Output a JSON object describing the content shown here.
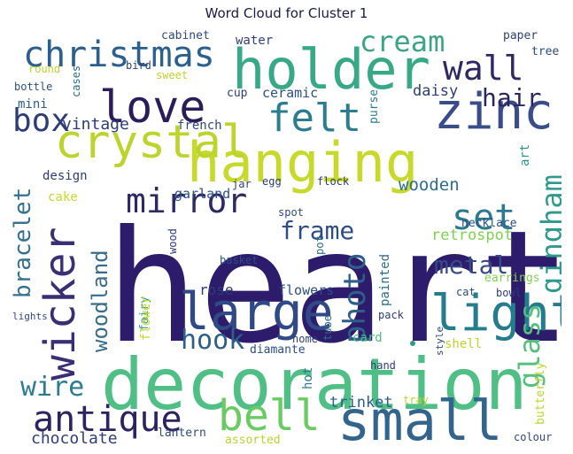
{
  "title": "Word Cloud for Cluster 1",
  "colors": {
    "background": "#ffffff",
    "title": "#1a1a4a"
  },
  "words": [
    {
      "text": "heart",
      "color": "#2d1b6b"
    },
    {
      "text": "decoration",
      "color": "#4fbf85"
    },
    {
      "text": "hanging",
      "color": "#c7d92a"
    },
    {
      "text": "crystal",
      "color": "#bcd42c"
    },
    {
      "text": "holder",
      "color": "#37a987"
    },
    {
      "text": "christmas",
      "color": "#2b5f8e"
    },
    {
      "text": "love",
      "color": "#2a1d59"
    },
    {
      "text": "zinc",
      "color": "#3a4c8a"
    },
    {
      "text": "felt",
      "color": "#2b7c8e"
    },
    {
      "text": "large",
      "color": "#2f4a86"
    },
    {
      "text": "light",
      "color": "#257c8c"
    },
    {
      "text": "small",
      "color": "#33648d"
    },
    {
      "text": "wicker",
      "color": "#3a2f74"
    },
    {
      "text": "mirror",
      "color": "#2d2a63"
    },
    {
      "text": "antique",
      "color": "#2d2362"
    },
    {
      "text": "bell",
      "color": "#6acb63"
    },
    {
      "text": "cream",
      "color": "#3ca587"
    },
    {
      "text": "wall",
      "color": "#2d2a63"
    },
    {
      "text": "box",
      "color": "#2c3d77"
    },
    {
      "text": "photo",
      "color": "#2c5f89"
    },
    {
      "text": "frame",
      "color": "#2e4c86"
    },
    {
      "text": "set",
      "color": "#2b7a8e"
    },
    {
      "text": "gingham",
      "color": "#2f9a8c"
    },
    {
      "text": "glass",
      "color": "#53c07e"
    },
    {
      "text": "metal",
      "color": "#354a86"
    },
    {
      "text": "bracelet",
      "color": "#35718f"
    },
    {
      "text": "woodland",
      "color": "#3a6c8b"
    },
    {
      "text": "hook",
      "color": "#2c5f89"
    },
    {
      "text": "hair",
      "color": "#2a2560"
    },
    {
      "text": "wire",
      "color": "#2b7c8e"
    },
    {
      "text": "chocolate",
      "color": "#2f3f7a"
    },
    {
      "text": "vintage",
      "color": "#2c3d77"
    },
    {
      "text": "french",
      "color": "#2f4a7e"
    },
    {
      "text": "wooden",
      "color": "#2b6d8e"
    },
    {
      "text": "daisy",
      "color": "#2c3d77"
    },
    {
      "text": "ceramic",
      "color": "#2b4f86"
    },
    {
      "text": "trinket",
      "color": "#2b5f8e"
    },
    {
      "text": "retrospot",
      "color": "#7ed34f"
    },
    {
      "text": "design",
      "color": "#2c3d77"
    },
    {
      "text": "garland",
      "color": "#2b4f86"
    },
    {
      "text": "rose",
      "color": "#2c3d77"
    },
    {
      "text": "flowers",
      "color": "#2b4f86"
    },
    {
      "text": "painted",
      "color": "#2b6d8e"
    },
    {
      "text": "water",
      "color": "#2f3f7a"
    },
    {
      "text": "cup",
      "color": "#2c3d77"
    },
    {
      "text": "mini",
      "color": "#2c5f89"
    },
    {
      "text": "bottle",
      "color": "#2b4f86"
    },
    {
      "text": "cases",
      "color": "#2b6d8e"
    },
    {
      "text": "round",
      "color": "#bcd42c"
    },
    {
      "text": "bird",
      "color": "#2f3f7a"
    },
    {
      "text": "sweet",
      "color": "#bcd42c"
    },
    {
      "text": "cabinet",
      "color": "#2f4a7e"
    },
    {
      "text": "paper",
      "color": "#2f3f7a"
    },
    {
      "text": "tree",
      "color": "#2f4a7e"
    },
    {
      "text": "purse",
      "color": "#2b7c8e"
    },
    {
      "text": "art",
      "color": "#2f9a8c"
    },
    {
      "text": "egg",
      "color": "#2c3d77"
    },
    {
      "text": "jar",
      "color": "#2f3f7a"
    },
    {
      "text": "flock",
      "color": "#2c3d77"
    },
    {
      "text": "cake",
      "color": "#c7d92a"
    },
    {
      "text": "spot",
      "color": "#2f4a7e"
    },
    {
      "text": "necklace",
      "color": "#2b4f86"
    },
    {
      "text": "earrings",
      "color": "#7ed34f"
    },
    {
      "text": "bowl",
      "color": "#2c3d77"
    },
    {
      "text": "cat",
      "color": "#2f4a7e"
    },
    {
      "text": "basket",
      "color": "#2b4f86"
    },
    {
      "text": "pot",
      "color": "#2b6d8e"
    },
    {
      "text": "wood",
      "color": "#2c3d77"
    },
    {
      "text": "fairy",
      "color": "#2f9a8c"
    },
    {
      "text": "flower",
      "color": "#c7d92a"
    },
    {
      "text": "lights",
      "color": "#2f4a7e"
    },
    {
      "text": "pack",
      "color": "#2c3d77"
    },
    {
      "text": "home",
      "color": "#2c3d77"
    },
    {
      "text": "diamante",
      "color": "#2b4f86"
    },
    {
      "text": "tube",
      "color": "#2b6d8e"
    },
    {
      "text": "card",
      "color": "#4fbf85"
    },
    {
      "text": "style",
      "color": "#2f4a7e"
    },
    {
      "text": "shell",
      "color": "#bcd42c"
    },
    {
      "text": "butterfly",
      "color": "#bcd42c"
    },
    {
      "text": "hand",
      "color": "#2c3d77"
    },
    {
      "text": "hot",
      "color": "#2b7c8e"
    },
    {
      "text": "tray",
      "color": "#bcd42c"
    },
    {
      "text": "lantern",
      "color": "#2f4a7e"
    },
    {
      "text": "assorted",
      "color": "#bcd42c"
    },
    {
      "text": "colour",
      "color": "#2f4a7e"
    }
  ]
}
